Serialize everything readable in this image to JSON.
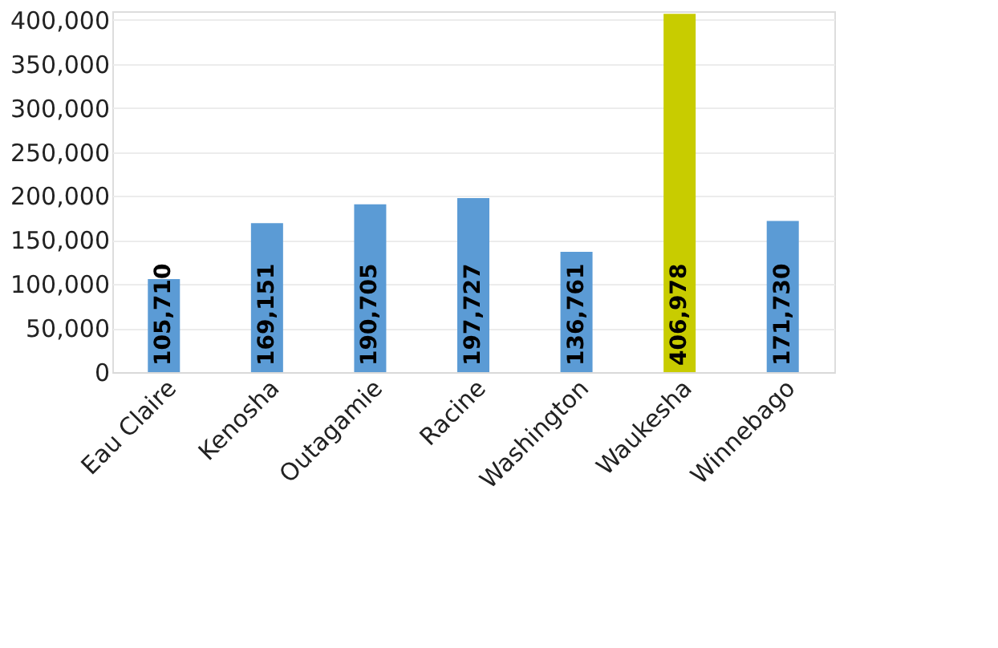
{
  "chart_data": {
    "type": "bar",
    "categories": [
      "Eau Claire",
      "Kenosha",
      "Outagamie",
      "Racine",
      "Washington",
      "Waukesha",
      "Winnebago"
    ],
    "values": [
      105710,
      169151,
      190705,
      197727,
      136761,
      406978,
      171730
    ],
    "colors": [
      "#5b9bd5",
      "#5b9bd5",
      "#5b9bd5",
      "#5b9bd5",
      "#5b9bd5",
      "#c8cc00",
      "#5b9bd5"
    ],
    "ylim": [
      0,
      410000
    ],
    "yticks": [
      {
        "value": 0,
        "label": "0"
      },
      {
        "value": 50000,
        "label": "50,000"
      },
      {
        "value": 100000,
        "label": "100,000"
      },
      {
        "value": 150000,
        "label": "150,000"
      },
      {
        "value": 200000,
        "label": "200,000"
      },
      {
        "value": 250000,
        "label": "250,000"
      },
      {
        "value": 300000,
        "label": "300,000"
      },
      {
        "value": 350000,
        "label": "350,000"
      },
      {
        "value": 400000,
        "label": "400,000"
      }
    ],
    "value_labels": [
      "105,710",
      "169,151",
      "190,705",
      "197,727",
      "136,761",
      "406,978",
      "171,730"
    ],
    "grid": "y"
  }
}
